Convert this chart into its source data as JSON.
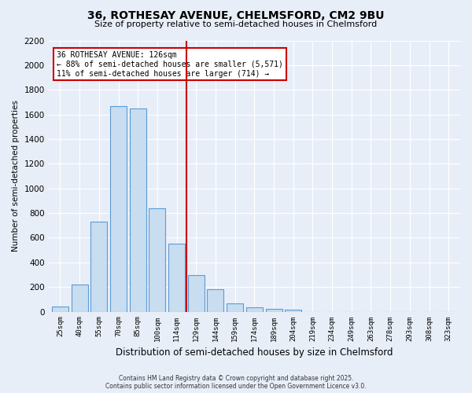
{
  "title": "36, ROTHESAY AVENUE, CHELMSFORD, CM2 9BU",
  "subtitle": "Size of property relative to semi-detached houses in Chelmsford",
  "bar_labels": [
    "25sqm",
    "40sqm",
    "55sqm",
    "70sqm",
    "85sqm",
    "100sqm",
    "114sqm",
    "129sqm",
    "144sqm",
    "159sqm",
    "174sqm",
    "189sqm",
    "204sqm",
    "219sqm",
    "234sqm",
    "249sqm",
    "263sqm",
    "278sqm",
    "293sqm",
    "308sqm",
    "323sqm"
  ],
  "bar_values": [
    40,
    220,
    730,
    1670,
    1650,
    840,
    555,
    300,
    180,
    70,
    35,
    25,
    15,
    0,
    0,
    0,
    0,
    0,
    0,
    0,
    0
  ],
  "bar_color": "#c8ddf0",
  "bar_edge_color": "#5b9bd5",
  "vline_color": "#cc0000",
  "ylabel": "Number of semi-detached properties",
  "xlabel": "Distribution of semi-detached houses by size in Chelmsford",
  "ylim": [
    0,
    2200
  ],
  "yticks": [
    0,
    200,
    400,
    600,
    800,
    1000,
    1200,
    1400,
    1600,
    1800,
    2000,
    2200
  ],
  "annotation_title": "36 ROTHESAY AVENUE: 126sqm",
  "annotation_line1": "← 88% of semi-detached houses are smaller (5,571)",
  "annotation_line2": "11% of semi-detached houses are larger (714) →",
  "footnote1": "Contains HM Land Registry data © Crown copyright and database right 2025.",
  "footnote2": "Contains public sector information licensed under the Open Government Licence v3.0.",
  "background_color": "#e8eef8",
  "grid_color": "#ffffff"
}
